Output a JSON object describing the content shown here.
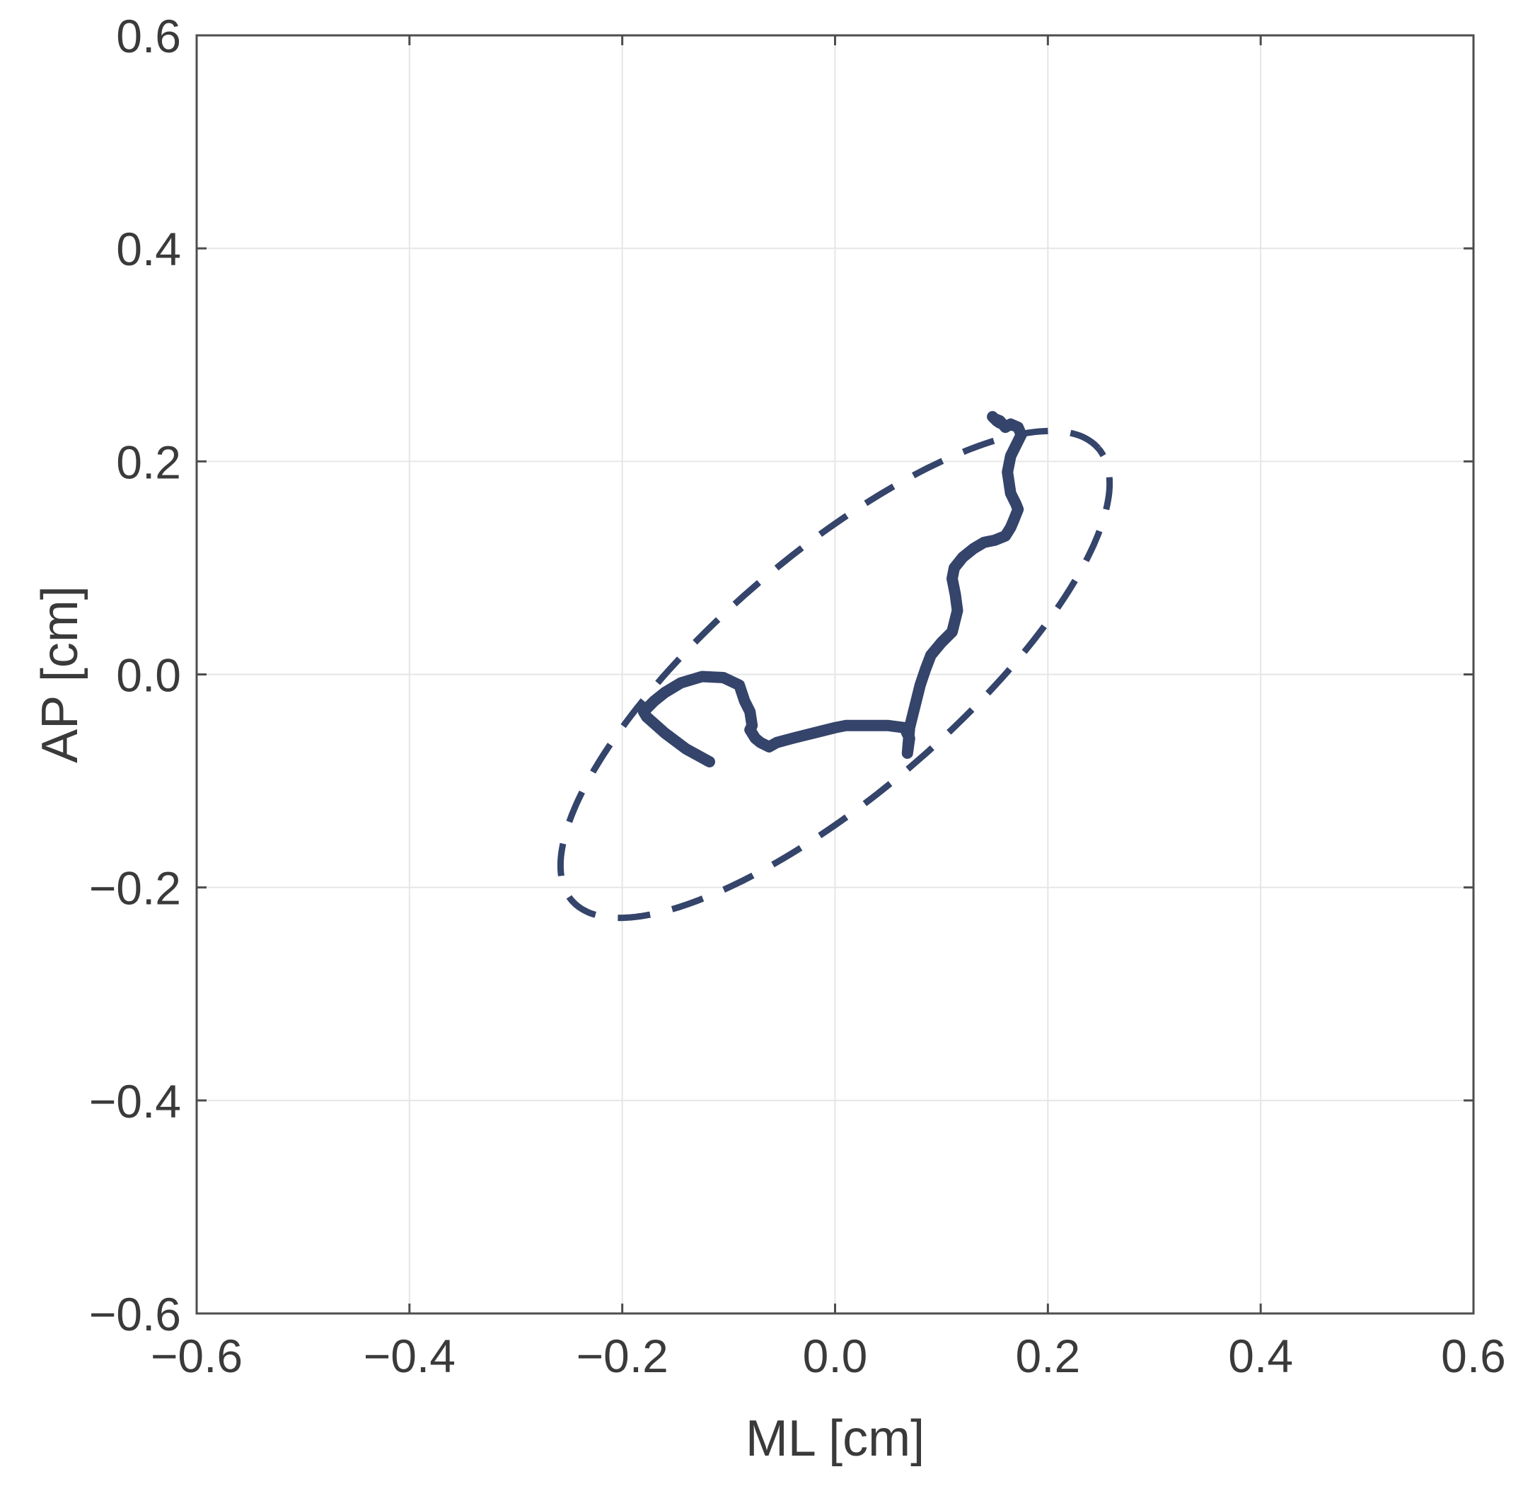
{
  "chart_data": {
    "type": "line",
    "title": "",
    "xlabel": "ML [cm]",
    "ylabel": "AP [cm]",
    "xlim": [
      -0.6,
      0.6
    ],
    "ylim": [
      -0.6,
      0.6
    ],
    "xticks": [
      -0.6,
      -0.4,
      -0.2,
      0.0,
      0.2,
      0.4,
      0.6
    ],
    "yticks": [
      -0.6,
      -0.4,
      -0.2,
      0.0,
      0.2,
      0.4,
      0.6
    ],
    "xtick_labels": [
      "−0.6",
      "−0.4",
      "−0.2",
      "0.0",
      "0.2",
      "0.4",
      "0.6"
    ],
    "ytick_labels": [
      "−0.6",
      "−0.4",
      "−0.2",
      "0.0",
      "0.2",
      "0.4",
      "0.6"
    ],
    "grid": true,
    "colors": {
      "series": "#34446a",
      "grid": "#e6e6e6",
      "axis": "#4d4d4d",
      "text": "#3a3a3a"
    },
    "series": [
      {
        "style": "solid",
        "x": [
          -0.118,
          -0.14,
          -0.16,
          -0.177,
          -0.18,
          -0.17,
          -0.16,
          -0.145,
          -0.125,
          -0.105,
          -0.09,
          -0.085,
          -0.08,
          -0.078,
          -0.08,
          -0.075,
          -0.07,
          -0.062,
          -0.055,
          -0.04,
          -0.02,
          0.0,
          0.01,
          0.03,
          0.05,
          0.065,
          0.07,
          0.068,
          0.07,
          0.075,
          0.08,
          0.085,
          0.09,
          0.1,
          0.11,
          0.115,
          0.113,
          0.11,
          0.112,
          0.12,
          0.13,
          0.14,
          0.15,
          0.16,
          0.165,
          0.168,
          0.17,
          0.172,
          0.17,
          0.165,
          0.162,
          0.165,
          0.17,
          0.175,
          0.172,
          0.165,
          0.16,
          0.155,
          0.15,
          0.148,
          0.152,
          0.155
        ],
        "y": [
          -0.082,
          -0.07,
          -0.055,
          -0.04,
          -0.035,
          -0.025,
          -0.017,
          -0.008,
          -0.002,
          -0.003,
          -0.01,
          -0.025,
          -0.035,
          -0.048,
          -0.052,
          -0.06,
          -0.064,
          -0.068,
          -0.064,
          -0.06,
          -0.055,
          -0.05,
          -0.048,
          -0.048,
          -0.048,
          -0.05,
          -0.06,
          -0.074,
          -0.05,
          -0.03,
          -0.01,
          0.005,
          0.018,
          0.03,
          0.04,
          0.06,
          0.075,
          0.09,
          0.1,
          0.11,
          0.118,
          0.124,
          0.126,
          0.13,
          0.138,
          0.145,
          0.15,
          0.155,
          0.16,
          0.17,
          0.19,
          0.205,
          0.215,
          0.225,
          0.232,
          0.235,
          0.232,
          0.238,
          0.24,
          0.242,
          0.238,
          0.236
        ]
      },
      {
        "style": "dashed",
        "shape": "ellipse",
        "center": [
          0.0,
          0.0
        ],
        "rx": 0.326,
        "ry": 0.112,
        "rotation_deg": 40.6
      }
    ]
  }
}
